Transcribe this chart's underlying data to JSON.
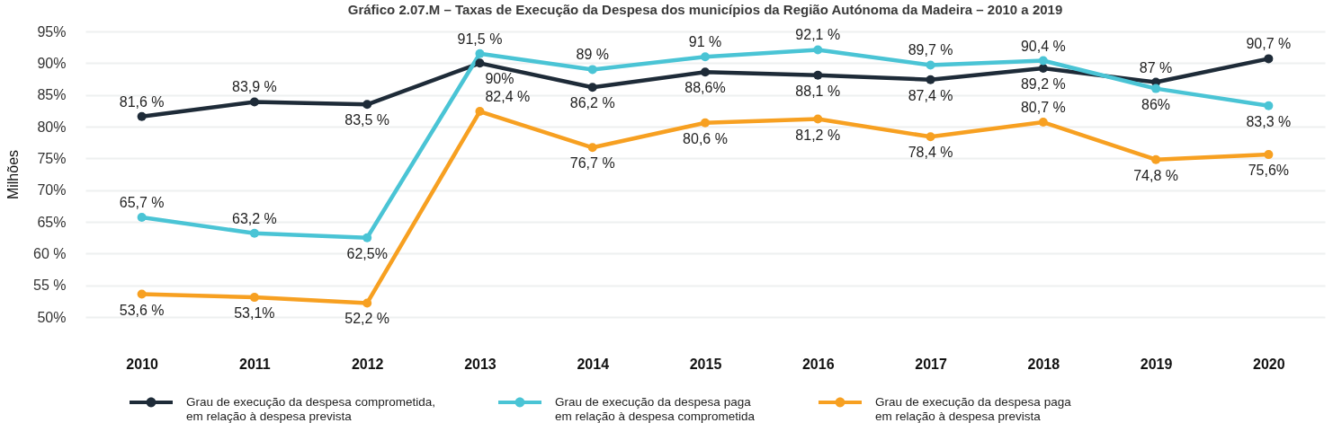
{
  "chart_data": {
    "type": "line",
    "title": "Gráfico 2.07.M – Taxas de Execução da Despesa dos municípios da Região Autónoma da Madeira – 2010 a 2019",
    "ylabel": "Milhões",
    "categories": [
      "2010",
      "2011",
      "2012",
      "2013",
      "2014",
      "2015",
      "2016",
      "2017",
      "2018",
      "2019",
      "2020"
    ],
    "series": [
      {
        "name": "Grau de execução da despesa comprometida, em relação à despesa prevista",
        "color": "#1e2b38",
        "values": [
          81.6,
          83.9,
          83.5,
          90,
          86.2,
          88.6,
          88.1,
          87.4,
          89.2,
          87,
          90.7
        ],
        "value_labels": [
          "81,6 %",
          "83,9 %",
          "83,5 %",
          "90%",
          "86,2 %",
          "88,6%",
          "88,1 %",
          "87,4 %",
          "89,2 %",
          "87 %",
          "90,7 %"
        ]
      },
      {
        "name": "Grau de execução da despesa paga em relação à despesa comprometida",
        "color": "#4ac4d5",
        "values": [
          65.7,
          63.2,
          62.5,
          91.5,
          89,
          91,
          92.1,
          89.7,
          90.4,
          86,
          83.3
        ],
        "value_labels": [
          "65,7 %",
          "63,2 %",
          "62,5%",
          "91,5 %",
          "89 %",
          "91 %",
          "92,1 %",
          "89,7 %",
          "90,4 %",
          "86%",
          "83,3 %"
        ]
      },
      {
        "name": "Grau de execução da despesa paga em relação à despesa prevista",
        "color": "#f7a021",
        "values": [
          53.6,
          53.1,
          52.2,
          82.4,
          76.7,
          80.6,
          81.2,
          78.4,
          80.7,
          74.8,
          75.6
        ],
        "value_labels": [
          "53,6 %",
          "53,1%",
          "52,2 %",
          "82,4 %",
          "76,7 %",
          "80,6 %",
          "81,2 %",
          "78,4 %",
          "80,7 %",
          "74,8 %",
          "75,6%"
        ]
      }
    ],
    "ylim": [
      50,
      95
    ],
    "yticks": [
      {
        "value": 50,
        "label": "50%"
      },
      {
        "value": 55,
        "label": "55 %"
      },
      {
        "value": 60,
        "label": "60 %"
      },
      {
        "value": 65,
        "label": "65%"
      },
      {
        "value": 70,
        "label": "70%"
      },
      {
        "value": 75,
        "label": "75%"
      },
      {
        "value": 80,
        "label": "80%"
      },
      {
        "value": 85,
        "label": "85%"
      },
      {
        "value": 90,
        "label": "90%"
      },
      {
        "value": 95,
        "label": "95%"
      }
    ],
    "grid": "y",
    "legend": "bottom",
    "marker": "circle",
    "line_style": "solid"
  }
}
